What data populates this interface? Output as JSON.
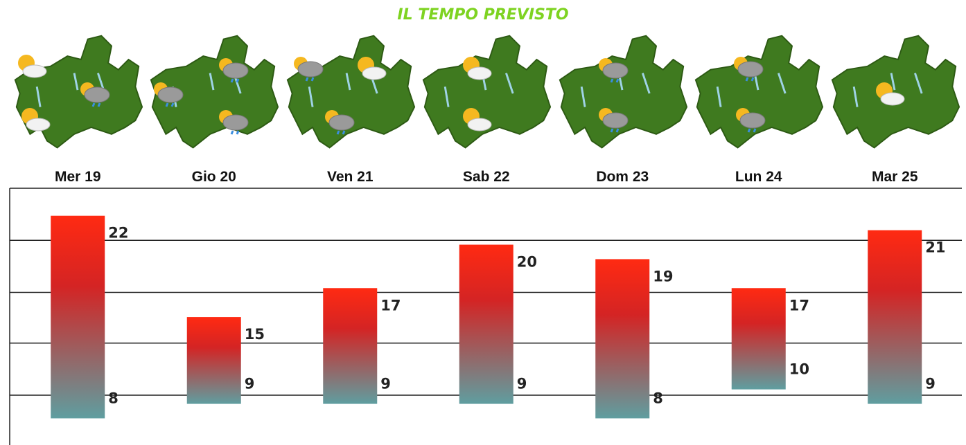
{
  "chart_data": {
    "type": "range-bar",
    "title": "IL TEMPO PREVISTO",
    "categories": [
      "Mer 19",
      "Gio 20",
      "Ven 21",
      "Sab 22",
      "Dom 23",
      "Lun 24",
      "Mar 25"
    ],
    "high": [
      22,
      15,
      17,
      20,
      19,
      17,
      21
    ],
    "low": [
      8,
      9,
      9,
      9,
      8,
      10,
      9
    ],
    "color_top": "#ff2a12",
    "color_bottom": "#5f9ea0",
    "ylim": [
      6.3,
      23.9
    ],
    "yticks": [
      9.6,
      13.2,
      16.7,
      20.3
    ],
    "grid": true
  }
}
